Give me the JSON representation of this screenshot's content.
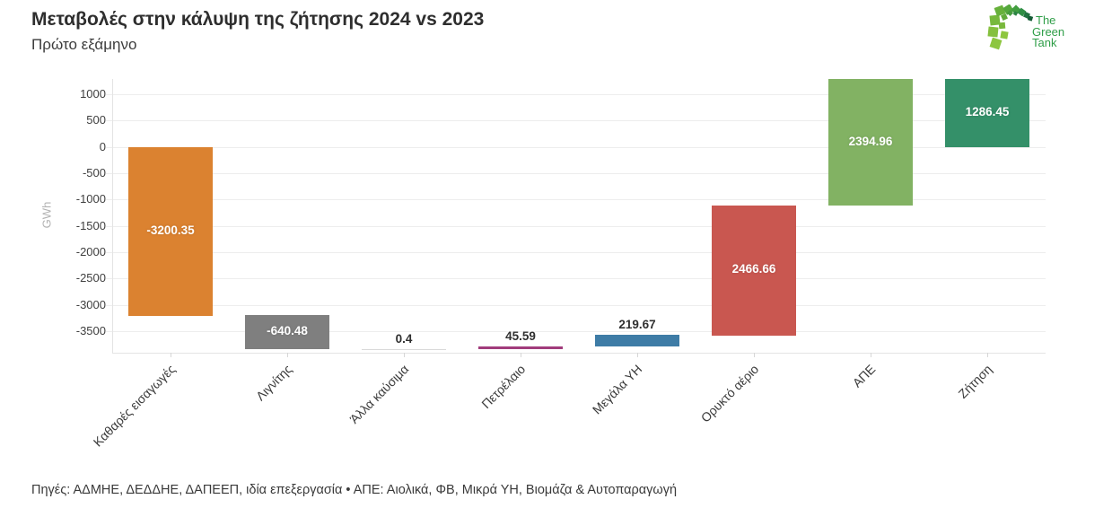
{
  "header": {
    "title": "Μεταβολές στην κάλυψη της ζήτησης 2024 vs 2023",
    "subtitle": "Πρώτο εξάμηνο"
  },
  "logo": {
    "line1": "The",
    "line2": "Green",
    "line3": "Tank"
  },
  "footer": {
    "text": "Πηγές: ΑΔΜΗΕ, ΔΕΔΔΗΕ, ΔΑΠΕΕΠ, ιδία επεξεργασία • ΑΠΕ: Αιολικά, ΦΒ, Μικρά ΥΗ, Βιομάζα & Αυτοπαραγωγή"
  },
  "chart_data": {
    "type": "bar",
    "subtype": "waterfall",
    "title": "Μεταβολές στην κάλυψη της ζήτησης 2024 vs 2023",
    "subtitle": "Πρώτο εξάμηνο",
    "ylabel": "GWh",
    "categories": [
      "Καθαρές εισαγωγές",
      "Λιγνίτης",
      "Άλλα καύσιμα",
      "Πετρέλαιο",
      "Μεγάλα ΥΗ",
      "Ορυκτό αέριο",
      "ΑΠΕ",
      "Ζήτηση"
    ],
    "values": [
      -3200.35,
      -640.48,
      0.4,
      45.59,
      219.67,
      2466.66,
      2394.96,
      1286.45
    ],
    "bar_kinds": [
      "relative",
      "relative",
      "relative",
      "relative",
      "relative",
      "relative",
      "relative",
      "total"
    ],
    "bar_labels": [
      "-3200.35",
      "-640.48",
      "0.4",
      "45.59",
      "219.67",
      "2466.66",
      "2394.96",
      "1286.45"
    ],
    "colors": [
      "#db8230",
      "#7f7f7f",
      "#d9d9d9",
      "#a13c7c",
      "#3e7ca6",
      "#c95750",
      "#82b263",
      "#349069"
    ],
    "yticks": [
      1000,
      500,
      0,
      -500,
      -1000,
      -1500,
      -2000,
      -2500,
      -3000,
      -3500
    ],
    "ylim": [
      -3910,
      1286.45
    ],
    "grid": true,
    "legend": "none"
  }
}
